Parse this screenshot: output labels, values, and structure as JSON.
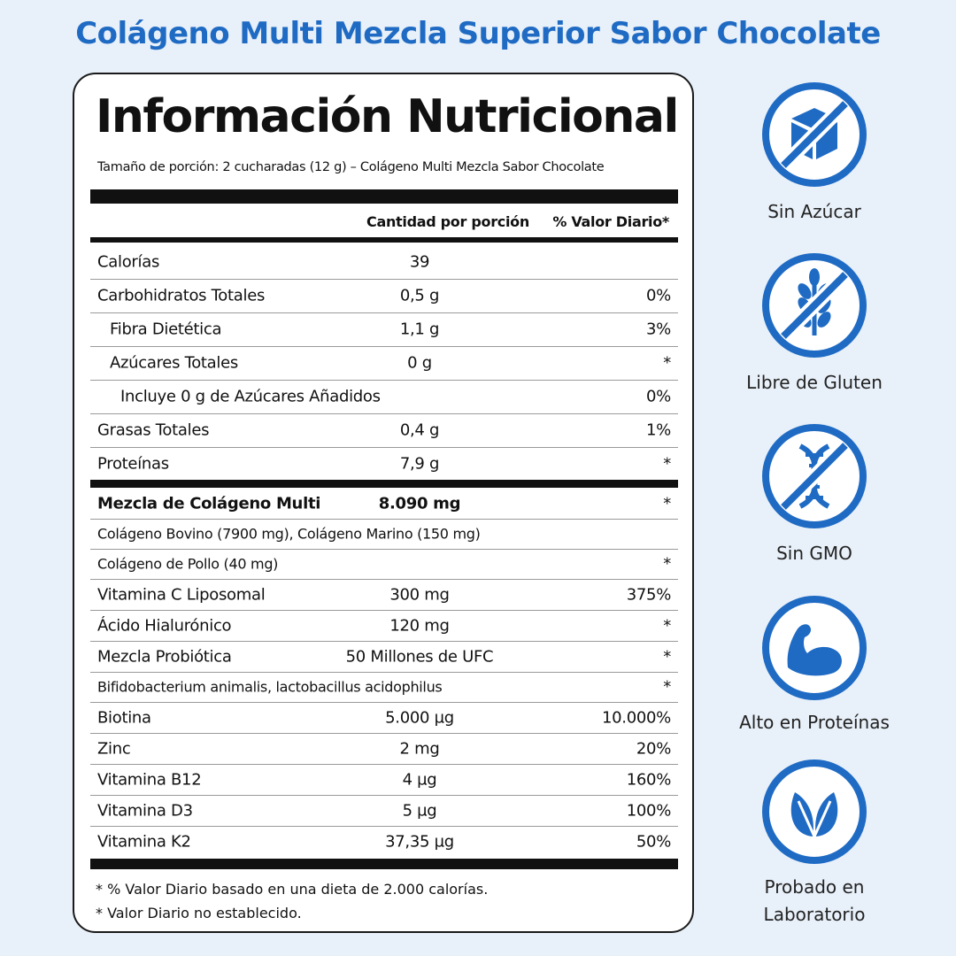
{
  "title": "Colágeno Multi Mezcla Superior Sabor Chocolate",
  "panel": {
    "heading": "Información Nutricional",
    "serving": "Tamaño de porción: 2 cucharadas (12 g) – Colágeno Multi Mezcla Sabor Chocolate",
    "col_amount": "Cantidad por porción",
    "col_dv": "% Valor Diario*",
    "rows_macro": [
      {
        "label": "Calorías",
        "amount": "39",
        "dv": ""
      },
      {
        "label": "Carbohidratos Totales",
        "amount": "0,5 g",
        "dv": "0%"
      },
      {
        "label": "Fibra Dietética",
        "amount": "1,1 g",
        "dv": "3%"
      },
      {
        "label": "Azúcares Totales",
        "amount": "0 g",
        "dv": "*"
      },
      {
        "label": "Incluye 0 g de Azúcares Añadidos",
        "amount": "",
        "dv": "0%"
      },
      {
        "label": "Grasas Totales",
        "amount": "0,4 g",
        "dv": "1%"
      },
      {
        "label": "Proteínas",
        "amount": "7,9 g",
        "dv": "*"
      }
    ],
    "rows_blend": [
      {
        "label": "Mezcla de Colágeno Multi",
        "amount": "8.090 mg",
        "dv": "*"
      },
      {
        "label": "Colágeno Bovino (7900 mg), Colágeno Marino (150 mg)",
        "amount": "",
        "dv": ""
      },
      {
        "label": "Colágeno de Pollo (40 mg)",
        "amount": "",
        "dv": "*"
      },
      {
        "label": "Vitamina C Liposomal",
        "amount": "300 mg",
        "dv": "375%"
      },
      {
        "label": "Ácido Hialurónico",
        "amount": "120 mg",
        "dv": "*"
      },
      {
        "label": "Mezcla Probiótica",
        "amount": "50 Millones de UFC",
        "dv": "*"
      },
      {
        "label": "Bifidobacterium animalis, lactobacillus acidophilus",
        "amount": "",
        "dv": "*"
      },
      {
        "label": "Biotina",
        "amount": "5.000 µg",
        "dv": "10.000%"
      },
      {
        "label": "Zinc",
        "amount": "2 mg",
        "dv": "20%"
      },
      {
        "label": "Vitamina B12",
        "amount": "4 µg",
        "dv": "160%"
      },
      {
        "label": "Vitamina D3",
        "amount": "5 µg",
        "dv": "100%"
      },
      {
        "label": "Vitamina K2",
        "amount": "37,35 µg",
        "dv": "50%"
      }
    ],
    "footnotes": [
      "* % Valor Diario basado en una dieta de 2.000 calorías.",
      "* Valor Diario no establecido."
    ]
  },
  "badges": [
    {
      "label": "Sin Azúcar",
      "icon": "sugar-cube-crossed-icon"
    },
    {
      "label": "Libre de Gluten",
      "icon": "wheat-crossed-icon"
    },
    {
      "label": "Sin GMO",
      "icon": "dna-crossed-icon"
    },
    {
      "label": "Alto en Proteínas",
      "icon": "flexed-arm-icon"
    },
    {
      "label": "Probado en Laboratorio",
      "icon": "leaves-icon"
    }
  ],
  "colors": {
    "accent": "#1f6bc4",
    "background": "#e8f0f9",
    "ink": "#111111"
  }
}
